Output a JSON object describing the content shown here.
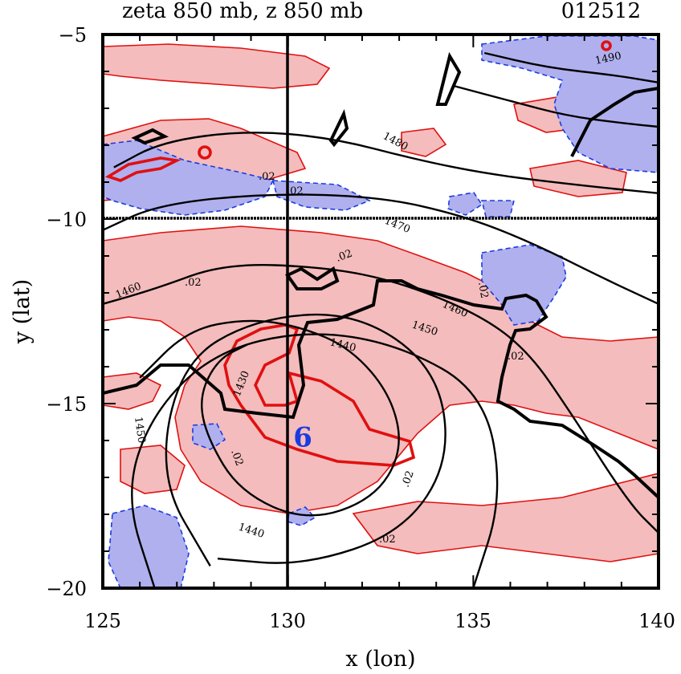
{
  "chart_data": {
    "type": "contour",
    "title": "zeta 850 mb, z 850 mb",
    "title_right": "012512",
    "xlabel": "x (lon)",
    "ylabel": "y (lat)",
    "xlim": [
      125,
      140
    ],
    "ylim": [
      -20,
      -5
    ],
    "xticks": [
      125,
      130,
      135,
      140
    ],
    "yticks": [
      -5,
      -10,
      -15,
      -20
    ],
    "xtick_labels": [
      "125",
      "130",
      "135",
      "140"
    ],
    "ytick_labels": [
      "−5",
      "−10",
      "−15",
      "−20"
    ],
    "crosshair": {
      "x": 130,
      "y": -10
    },
    "storm_marker": {
      "x": 130.4,
      "y": -15.9,
      "symbol": "6"
    },
    "colors": {
      "positive_fill": "#f4bcbc",
      "positive_line": "#e01010",
      "negative_fill": "#b0b0ee",
      "negative_line": "#1a3be0",
      "height_line": "#000000"
    },
    "height_contour_labels": [
      "1480",
      "1470",
      "1460",
      "1450",
      "1440",
      "1430",
      "1450",
      "1460",
      "1440",
      "1490"
    ],
    "vorticity_labels": [
      ".02",
      ".02",
      ".02",
      ".02",
      ".02",
      ".02",
      ".02",
      ".02",
      ".02"
    ],
    "height_contours": [
      {
        "value": 1430,
        "points": [
          [
            126.0,
            -14.3
          ],
          [
            127.3,
            -13.0
          ],
          [
            128.9,
            -12.7
          ],
          [
            130.3,
            -12.9
          ],
          [
            131.7,
            -13.5
          ],
          [
            132.8,
            -14.8
          ],
          [
            133.1,
            -16.3
          ],
          [
            132.3,
            -17.6
          ],
          [
            130.5,
            -18.2
          ],
          [
            128.7,
            -17.4
          ],
          [
            127.8,
            -15.9
          ],
          [
            127.6,
            -14.8
          ],
          [
            128.1,
            -13.8
          ],
          [
            128.9,
            -13.4
          ]
        ]
      },
      {
        "value": 1440,
        "points": [
          [
            127.9,
            -19.4
          ],
          [
            126.5,
            -17.0
          ],
          [
            127.1,
            -13.9
          ],
          [
            129.1,
            -12.7
          ],
          [
            131.8,
            -12.5
          ],
          [
            134.0,
            -14.0
          ],
          [
            134.4,
            -16.5
          ],
          [
            133.1,
            -18.5
          ],
          [
            130.4,
            -19.4
          ],
          [
            128.1,
            -19.2
          ]
        ]
      },
      {
        "value": 1450,
        "points": [
          [
            126.4,
            -20.0
          ],
          [
            125.6,
            -17.5
          ],
          [
            126.3,
            -15.3
          ],
          [
            128.0,
            -13.6
          ],
          [
            130.5,
            -13.0
          ],
          [
            133.0,
            -13.4
          ],
          [
            135.3,
            -14.7
          ],
          [
            135.8,
            -17.5
          ],
          [
            135.0,
            -20.0
          ]
        ]
      },
      {
        "value": 1460,
        "points": [
          [
            125.0,
            -12.3
          ],
          [
            126.4,
            -11.9
          ],
          [
            128.3,
            -11.2
          ],
          [
            131.0,
            -11.3
          ],
          [
            133.0,
            -11.7
          ],
          [
            135.2,
            -12.6
          ],
          [
            136.5,
            -13.6
          ],
          [
            137.6,
            -15.2
          ],
          [
            139.2,
            -17.7
          ],
          [
            140.0,
            -18.5
          ]
        ]
      },
      {
        "value": 1470,
        "points": [
          [
            125.0,
            -10.3
          ],
          [
            126.5,
            -9.6
          ],
          [
            129.5,
            -9.3
          ],
          [
            132.5,
            -9.4
          ],
          [
            134.7,
            -9.9
          ],
          [
            136.5,
            -10.6
          ],
          [
            138.5,
            -11.6
          ],
          [
            140.0,
            -12.3
          ]
        ]
      },
      {
        "value": 1480,
        "points": [
          [
            125.3,
            -8.6
          ],
          [
            126.6,
            -7.9
          ],
          [
            128.9,
            -7.6
          ],
          [
            131.2,
            -7.8
          ],
          [
            133.5,
            -8.4
          ],
          [
            135.5,
            -8.8
          ],
          [
            138.0,
            -9.1
          ],
          [
            140.0,
            -9.3
          ]
        ]
      },
      {
        "value": 1490,
        "points": [
          [
            134.5,
            -6.4
          ],
          [
            136.0,
            -6.8
          ],
          [
            137.5,
            -7.2
          ],
          [
            139.0,
            -7.4
          ],
          [
            140.0,
            -7.5
          ]
        ]
      },
      {
        "value": 1500,
        "points": [
          [
            135.3,
            -5.5
          ],
          [
            137.0,
            -5.9
          ],
          [
            138.8,
            -6.1
          ],
          [
            140.0,
            -6.3
          ]
        ]
      }
    ]
  }
}
